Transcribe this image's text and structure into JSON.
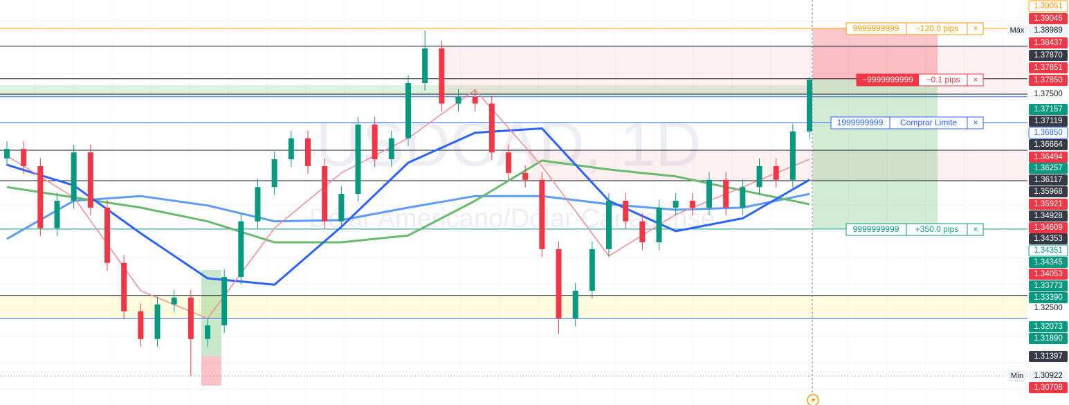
{
  "chart_data": {
    "type": "candlestick",
    "watermark": "USDCAD, 1D",
    "watermark_subtitle": "Dólar Americano/Dólar Canadense",
    "ylim": [
      1.3024,
      1.397
    ],
    "up_color": "#089981",
    "down_color": "#f23645",
    "candles": [
      {
        "open": 1.36,
        "high": 1.364,
        "low": 1.3582,
        "close": 1.3622
      },
      {
        "open": 1.3622,
        "high": 1.364,
        "low": 1.3564,
        "close": 1.3582
      },
      {
        "open": 1.3582,
        "high": 1.36,
        "low": 1.3419,
        "close": 1.3437
      },
      {
        "open": 1.3437,
        "high": 1.3519,
        "low": 1.3419,
        "close": 1.3501
      },
      {
        "open": 1.3501,
        "high": 1.3632,
        "low": 1.3483,
        "close": 1.3614
      },
      {
        "open": 1.3614,
        "high": 1.3632,
        "low": 1.3467,
        "close": 1.3485
      },
      {
        "open": 1.3485,
        "high": 1.3503,
        "low": 1.3338,
        "close": 1.3356
      },
      {
        "open": 1.3356,
        "high": 1.3374,
        "low": 1.3225,
        "close": 1.3243
      },
      {
        "open": 1.3243,
        "high": 1.3261,
        "low": 1.316,
        "close": 1.3178
      },
      {
        "open": 1.3178,
        "high": 1.3277,
        "low": 1.316,
        "close": 1.3259
      },
      {
        "open": 1.3259,
        "high": 1.3293,
        "low": 1.3241,
        "close": 1.3275
      },
      {
        "open": 1.3275,
        "high": 1.3293,
        "low": 1.3092,
        "close": 1.3178
      },
      {
        "open": 1.3178,
        "high": 1.3228,
        "low": 1.316,
        "close": 1.321
      },
      {
        "open": 1.321,
        "high": 1.3341,
        "low": 1.3192,
        "close": 1.3323
      },
      {
        "open": 1.3323,
        "high": 1.3471,
        "low": 1.3305,
        "close": 1.3453
      },
      {
        "open": 1.3453,
        "high": 1.3551,
        "low": 1.3435,
        "close": 1.3533
      },
      {
        "open": 1.3533,
        "high": 1.3616,
        "low": 1.3515,
        "close": 1.3598
      },
      {
        "open": 1.3598,
        "high": 1.3665,
        "low": 1.358,
        "close": 1.3647
      },
      {
        "open": 1.3647,
        "high": 1.3665,
        "low": 1.3564,
        "close": 1.3582
      },
      {
        "open": 1.3582,
        "high": 1.36,
        "low": 1.3435,
        "close": 1.3453
      },
      {
        "open": 1.3453,
        "high": 1.3535,
        "low": 1.3435,
        "close": 1.3517
      },
      {
        "open": 1.3517,
        "high": 1.3697,
        "low": 1.3499,
        "close": 1.3679
      },
      {
        "open": 1.3679,
        "high": 1.3697,
        "low": 1.358,
        "close": 1.3598
      },
      {
        "open": 1.3598,
        "high": 1.3665,
        "low": 1.358,
        "close": 1.3647
      },
      {
        "open": 1.3647,
        "high": 1.3794,
        "low": 1.3629,
        "close": 1.3776
      },
      {
        "open": 1.3776,
        "high": 1.3899,
        "low": 1.3758,
        "close": 1.3857
      },
      {
        "open": 1.3857,
        "high": 1.3875,
        "low": 1.371,
        "close": 1.3728
      },
      {
        "open": 1.3728,
        "high": 1.3762,
        "low": 1.371,
        "close": 1.3744
      },
      {
        "open": 1.3744,
        "high": 1.3762,
        "low": 1.371,
        "close": 1.3728
      },
      {
        "open": 1.3728,
        "high": 1.3746,
        "low": 1.3596,
        "close": 1.3614
      },
      {
        "open": 1.3614,
        "high": 1.3632,
        "low": 1.3548,
        "close": 1.3566
      },
      {
        "open": 1.3566,
        "high": 1.3584,
        "low": 1.3532,
        "close": 1.355
      },
      {
        "open": 1.355,
        "high": 1.3568,
        "low": 1.337,
        "close": 1.3388
      },
      {
        "open": 1.3388,
        "high": 1.3406,
        "low": 1.319,
        "close": 1.3226
      },
      {
        "open": 1.3226,
        "high": 1.3309,
        "low": 1.3208,
        "close": 1.3291
      },
      {
        "open": 1.3291,
        "high": 1.3406,
        "low": 1.3273,
        "close": 1.3388
      },
      {
        "open": 1.3388,
        "high": 1.3519,
        "low": 1.337,
        "close": 1.3501
      },
      {
        "open": 1.3501,
        "high": 1.3519,
        "low": 1.3435,
        "close": 1.3453
      },
      {
        "open": 1.3453,
        "high": 1.3471,
        "low": 1.3386,
        "close": 1.3404
      },
      {
        "open": 1.3404,
        "high": 1.3503,
        "low": 1.3386,
        "close": 1.3485
      },
      {
        "open": 1.3485,
        "high": 1.3519,
        "low": 1.3467,
        "close": 1.3501
      },
      {
        "open": 1.3501,
        "high": 1.3519,
        "low": 1.3467,
        "close": 1.3485
      },
      {
        "open": 1.3485,
        "high": 1.3568,
        "low": 1.3467,
        "close": 1.355
      },
      {
        "open": 1.355,
        "high": 1.3568,
        "low": 1.3467,
        "close": 1.3485
      },
      {
        "open": 1.3485,
        "high": 1.3551,
        "low": 1.3467,
        "close": 1.3533
      },
      {
        "open": 1.3533,
        "high": 1.36,
        "low": 1.3515,
        "close": 1.3582
      },
      {
        "open": 1.3582,
        "high": 1.36,
        "low": 1.3532,
        "close": 1.355
      },
      {
        "open": 1.355,
        "high": 1.3681,
        "low": 1.3532,
        "close": 1.3663
      },
      {
        "open": 1.3663,
        "high": 1.379,
        "low": 1.3645,
        "close": 1.3784
      }
    ],
    "ma_x": [
      0,
      4,
      8,
      12,
      16,
      20,
      24,
      28,
      32,
      36,
      40,
      44,
      48
    ],
    "moving_averages": [
      {
        "color": "#5b9cf6",
        "width": 3,
        "values": [
          1.3412,
          1.3501,
          1.3512,
          1.349,
          1.3453,
          1.3456,
          1.3485,
          1.3512,
          1.3512,
          1.3493,
          1.348,
          1.3485,
          1.3517
        ]
      },
      {
        "color": "#66bb6a",
        "width": 3,
        "values": [
          1.3533,
          1.3509,
          1.3485,
          1.3453,
          1.3404,
          1.3404,
          1.342,
          1.3501,
          1.3595,
          1.3574,
          1.3558,
          1.3525,
          1.3493
        ]
      },
      {
        "color": "#2962ff",
        "width": 3,
        "values": [
          1.3585,
          1.3537,
          1.3425,
          1.332,
          1.3305,
          1.344,
          1.359,
          1.366,
          1.367,
          1.3501,
          1.343,
          1.346,
          1.355
        ]
      },
      {
        "color": "#f28b94",
        "width": 1.5,
        "values": [
          1.3606,
          1.3509,
          1.3291,
          1.3226,
          1.3437,
          1.3566,
          1.3647,
          1.376,
          1.3582,
          1.3372,
          1.3469,
          1.3533,
          1.3598
        ]
      }
    ],
    "levels": [
      {
        "price": 1.3904,
        "color": "#ff9800",
        "style": "solid"
      },
      {
        "price": 1.3862,
        "color": "#131722",
        "style": "solid"
      },
      {
        "price": 1.3786,
        "color": "#131722",
        "style": "solid"
      },
      {
        "price": 1.375,
        "color": "#131722",
        "style": "solid"
      },
      {
        "price": 1.3744,
        "color": "#2962ff",
        "style": "solid"
      },
      {
        "price": 1.3684,
        "color": "#2962ff",
        "style": "solid"
      },
      {
        "price": 1.3619,
        "color": "#131722",
        "style": "solid"
      },
      {
        "price": 1.3548,
        "color": "#131722",
        "style": "solid"
      },
      {
        "price": 1.3435,
        "color": "#089981",
        "style": "solid"
      },
      {
        "price": 1.328,
        "color": "#131722",
        "style": "solid"
      },
      {
        "price": 1.3226,
        "color": "#2962ff",
        "style": "solid"
      },
      {
        "price": 1.3092,
        "color": "#787b86",
        "style": "dotted"
      }
    ],
    "max_label": "Máx",
    "min_label": "Mín",
    "price_tags": [
      {
        "price": 1.39051,
        "style": "outline",
        "color": "#ff9800"
      },
      {
        "price": 1.39045,
        "style": "solid",
        "color": "#f23645"
      },
      {
        "price": 1.38989,
        "style": "light",
        "color": "#131722"
      },
      {
        "price": 1.38437,
        "style": "solid",
        "color": "#f23645"
      },
      {
        "price": {
          "value": 1.3787,
          "label": "1.37870"
        },
        "style": "solid",
        "color": "#363a45"
      },
      {
        "price": 1.37851,
        "style": "solid",
        "color": "#f23645"
      },
      {
        "price": {
          "value": 1.3785,
          "label": "1.37850"
        },
        "style": "solid",
        "color": "#f23645"
      },
      {
        "price": {
          "value": 1.375,
          "label": "1.37500"
        },
        "style": "plain",
        "color": "#131722"
      },
      {
        "price": 1.37157,
        "style": "solid",
        "color": "#089981"
      },
      {
        "price": 1.37119,
        "style": "solid",
        "color": "#363a45"
      },
      {
        "price": {
          "value": 1.3685,
          "label": "1.36850"
        },
        "style": "outline",
        "color": "#2962ff"
      },
      {
        "price": 1.36664,
        "style": "solid",
        "color": "#363a45"
      },
      {
        "price": 1.36494,
        "style": "solid",
        "color": "#f23645"
      },
      {
        "price": 1.36257,
        "style": "solid",
        "color": "#089981"
      },
      {
        "price": 1.36117,
        "style": "solid",
        "color": "#363a45"
      },
      {
        "price": 1.35968,
        "style": "solid",
        "color": "#363a45"
      },
      {
        "price": 1.35921,
        "style": "solid",
        "color": "#f23645"
      },
      {
        "price": 1.34928,
        "style": "solid",
        "color": "#363a45"
      },
      {
        "price": 1.34609,
        "style": "solid",
        "color": "#f23645"
      },
      {
        "price": 1.34353,
        "style": "solid",
        "color": "#363a45"
      },
      {
        "price": 1.34351,
        "style": "outline",
        "color": "#089981"
      },
      {
        "price": 1.34345,
        "style": "solid",
        "color": "#089981"
      },
      {
        "price": 1.34053,
        "style": "solid",
        "color": "#f23645"
      },
      {
        "price": 1.33773,
        "style": "solid",
        "color": "#089981"
      },
      {
        "price": {
          "value": 1.3339,
          "label": "1.33390"
        },
        "style": "solid",
        "color": "#089981"
      },
      {
        "price": {
          "value": 1.325,
          "label": "1.32500"
        },
        "style": "plain",
        "color": "#131722"
      },
      {
        "price": 1.32073,
        "style": "solid",
        "color": "#089981"
      },
      {
        "price": {
          "value": 1.3189,
          "label": "1.31890"
        },
        "style": "solid",
        "color": "#089981"
      },
      {
        "price": 1.31397,
        "style": "solid",
        "color": "#363a45"
      },
      {
        "price": 1.30922,
        "style": "light",
        "color": "#131722"
      },
      {
        "price": 1.30708,
        "style": "solid",
        "color": "#f23645"
      }
    ]
  },
  "orders": [
    {
      "qty": "9999999999",
      "info": "−120.0 pips",
      "close": "×"
    },
    {
      "qty": "−9999999999",
      "info": "−0.1 pips",
      "close": "×"
    },
    {
      "qty": "1999999999",
      "info": "Comprar Limite",
      "close": "×"
    },
    {
      "qty": "9999999999",
      "info": "+350.0 pips",
      "close": "×"
    }
  ]
}
